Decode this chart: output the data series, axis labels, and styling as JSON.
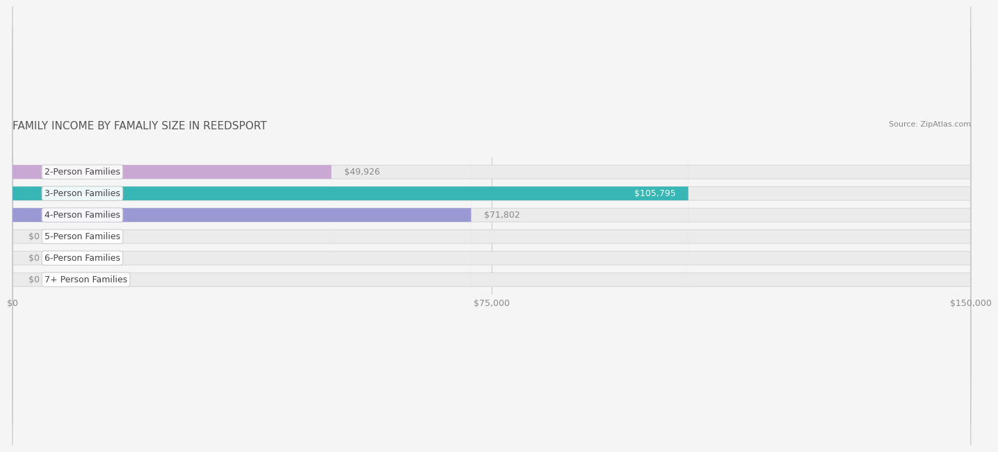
{
  "title": "FAMILY INCOME BY FAMALIY SIZE IN REEDSPORT",
  "source_text": "Source: ZipAtlas.com",
  "categories": [
    "2-Person Families",
    "3-Person Families",
    "4-Person Families",
    "5-Person Families",
    "6-Person Families",
    "7+ Person Families"
  ],
  "values": [
    49926,
    105795,
    71802,
    0,
    0,
    0
  ],
  "bar_colors": [
    "#c9a8d4",
    "#38b5b5",
    "#9b99d4",
    "#f7a8b8",
    "#f5c89a",
    "#f5a89a"
  ],
  "label_colors": [
    "#888888",
    "#ffffff",
    "#888888",
    "#888888",
    "#888888",
    "#888888"
  ],
  "xlim": [
    0,
    150000
  ],
  "xticks": [
    0,
    75000,
    150000
  ],
  "xtick_labels": [
    "$0",
    "$75,000",
    "$150,000"
  ],
  "background_color": "#f5f5f5",
  "bar_background_color": "#e8e8e8",
  "value_labels": [
    "$49,926",
    "$105,795",
    "$71,802",
    "$0",
    "$0",
    "$0"
  ],
  "bar_height": 0.62,
  "title_fontsize": 11,
  "label_fontsize": 9,
  "tick_fontsize": 9,
  "source_fontsize": 8
}
